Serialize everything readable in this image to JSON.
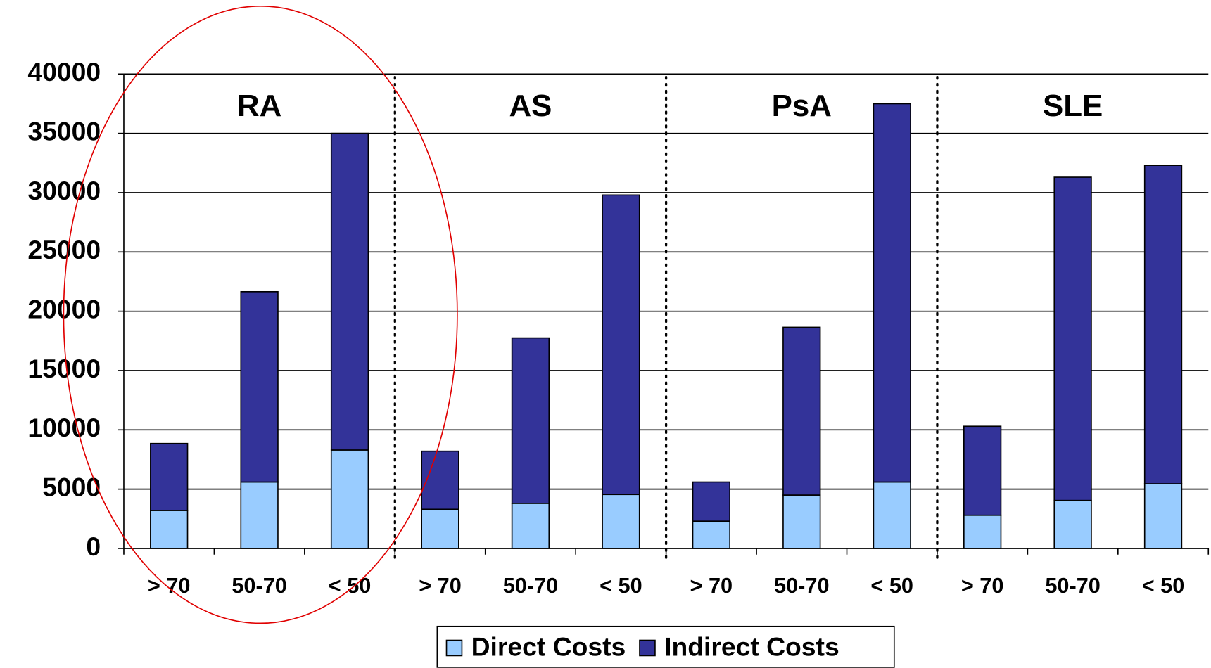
{
  "chart_data": {
    "type": "stacked_bar",
    "groups": [
      "RA",
      "AS",
      "PsA",
      "SLE"
    ],
    "categories": [
      "> 70",
      "50-70",
      "< 50",
      "> 70",
      "50-70",
      "< 50",
      "> 70",
      "50-70",
      "< 50",
      "> 70",
      "50-70",
      "< 50"
    ],
    "series": [
      {
        "name": "Direct Costs",
        "color": "#99ccff",
        "values": [
          3200,
          5600,
          8300,
          3300,
          3800,
          4550,
          2300,
          4500,
          5600,
          2800,
          4050,
          5450
        ]
      },
      {
        "name": "Indirect Costs",
        "color": "#333399",
        "values": [
          5650,
          16050,
          26700,
          4900,
          13950,
          25250,
          3300,
          14150,
          31900,
          7500,
          27250,
          26850
        ]
      }
    ],
    "ylim": [
      0,
      40000
    ],
    "yticks": [
      0,
      5000,
      10000,
      15000,
      20000,
      25000,
      30000,
      35000,
      40000
    ],
    "grid": true,
    "legend": "bottom"
  }
}
